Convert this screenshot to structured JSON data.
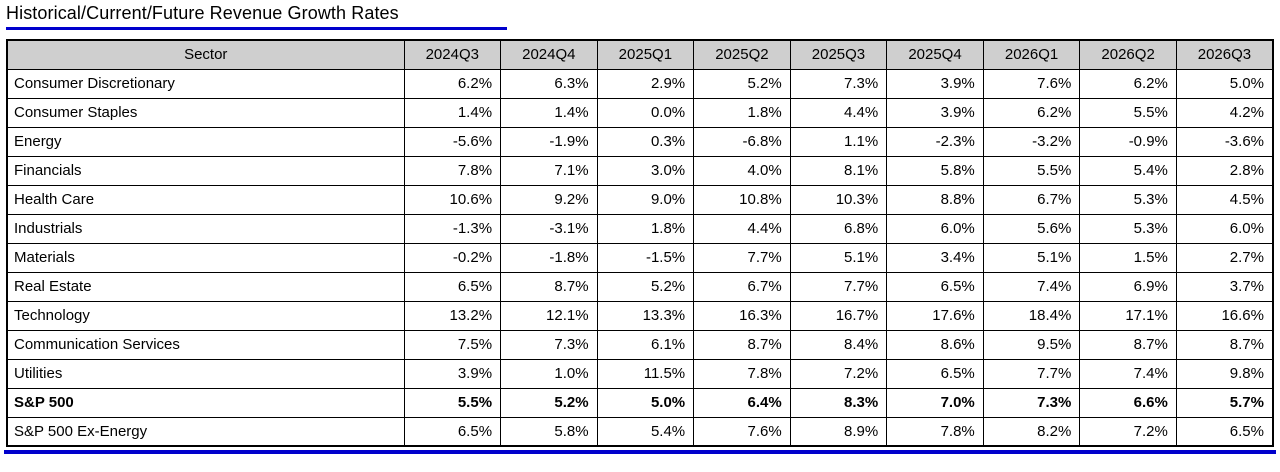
{
  "page": {
    "title": "Historical/Current/Future Revenue Growth Rates"
  },
  "colors": {
    "accent_blue": "#0000CC",
    "header_bg": "#CFCFCF",
    "table_border": "#000000"
  },
  "chart_data": {
    "type": "table",
    "title": "Historical/Current/Future Revenue Growth Rates",
    "columns": [
      "Sector",
      "2024Q3",
      "2024Q4",
      "2025Q1",
      "2025Q2",
      "2025Q3",
      "2025Q4",
      "2026Q1",
      "2026Q2",
      "2026Q3"
    ],
    "rows": [
      {
        "sector": "Consumer Discretionary",
        "values": [
          "6.2%",
          "6.3%",
          "2.9%",
          "5.2%",
          "7.3%",
          "3.9%",
          "7.6%",
          "6.2%",
          "5.0%"
        ],
        "bold": false
      },
      {
        "sector": "Consumer Staples",
        "values": [
          "1.4%",
          "1.4%",
          "0.0%",
          "1.8%",
          "4.4%",
          "3.9%",
          "6.2%",
          "5.5%",
          "4.2%"
        ],
        "bold": false
      },
      {
        "sector": "Energy",
        "values": [
          "-5.6%",
          "-1.9%",
          "0.3%",
          "-6.8%",
          "1.1%",
          "-2.3%",
          "-3.2%",
          "-0.9%",
          "-3.6%"
        ],
        "bold": false
      },
      {
        "sector": "Financials",
        "values": [
          "7.8%",
          "7.1%",
          "3.0%",
          "4.0%",
          "8.1%",
          "5.8%",
          "5.5%",
          "5.4%",
          "2.8%"
        ],
        "bold": false
      },
      {
        "sector": "Health Care",
        "values": [
          "10.6%",
          "9.2%",
          "9.0%",
          "10.8%",
          "10.3%",
          "8.8%",
          "6.7%",
          "5.3%",
          "4.5%"
        ],
        "bold": false
      },
      {
        "sector": "Industrials",
        "values": [
          "-1.3%",
          "-3.1%",
          "1.8%",
          "4.4%",
          "6.8%",
          "6.0%",
          "5.6%",
          "5.3%",
          "6.0%"
        ],
        "bold": false
      },
      {
        "sector": "Materials",
        "values": [
          "-0.2%",
          "-1.8%",
          "-1.5%",
          "7.7%",
          "5.1%",
          "3.4%",
          "5.1%",
          "1.5%",
          "2.7%"
        ],
        "bold": false
      },
      {
        "sector": "Real Estate",
        "values": [
          "6.5%",
          "8.7%",
          "5.2%",
          "6.7%",
          "7.7%",
          "6.5%",
          "7.4%",
          "6.9%",
          "3.7%"
        ],
        "bold": false
      },
      {
        "sector": "Technology",
        "values": [
          "13.2%",
          "12.1%",
          "13.3%",
          "16.3%",
          "16.7%",
          "17.6%",
          "18.4%",
          "17.1%",
          "16.6%"
        ],
        "bold": false
      },
      {
        "sector": "Communication Services",
        "values": [
          "7.5%",
          "7.3%",
          "6.1%",
          "8.7%",
          "8.4%",
          "8.6%",
          "9.5%",
          "8.7%",
          "8.7%"
        ],
        "bold": false
      },
      {
        "sector": "Utilities",
        "values": [
          "3.9%",
          "1.0%",
          "11.5%",
          "7.8%",
          "7.2%",
          "6.5%",
          "7.7%",
          "7.4%",
          "9.8%"
        ],
        "bold": false
      },
      {
        "sector": "S&P 500",
        "values": [
          "5.5%",
          "5.2%",
          "5.0%",
          "6.4%",
          "8.3%",
          "7.0%",
          "7.3%",
          "6.6%",
          "5.7%"
        ],
        "bold": true
      },
      {
        "sector": "S&P 500 Ex-Energy",
        "values": [
          "6.5%",
          "5.8%",
          "5.4%",
          "7.6%",
          "8.9%",
          "7.8%",
          "8.2%",
          "7.2%",
          "6.5%"
        ],
        "bold": false
      }
    ]
  }
}
